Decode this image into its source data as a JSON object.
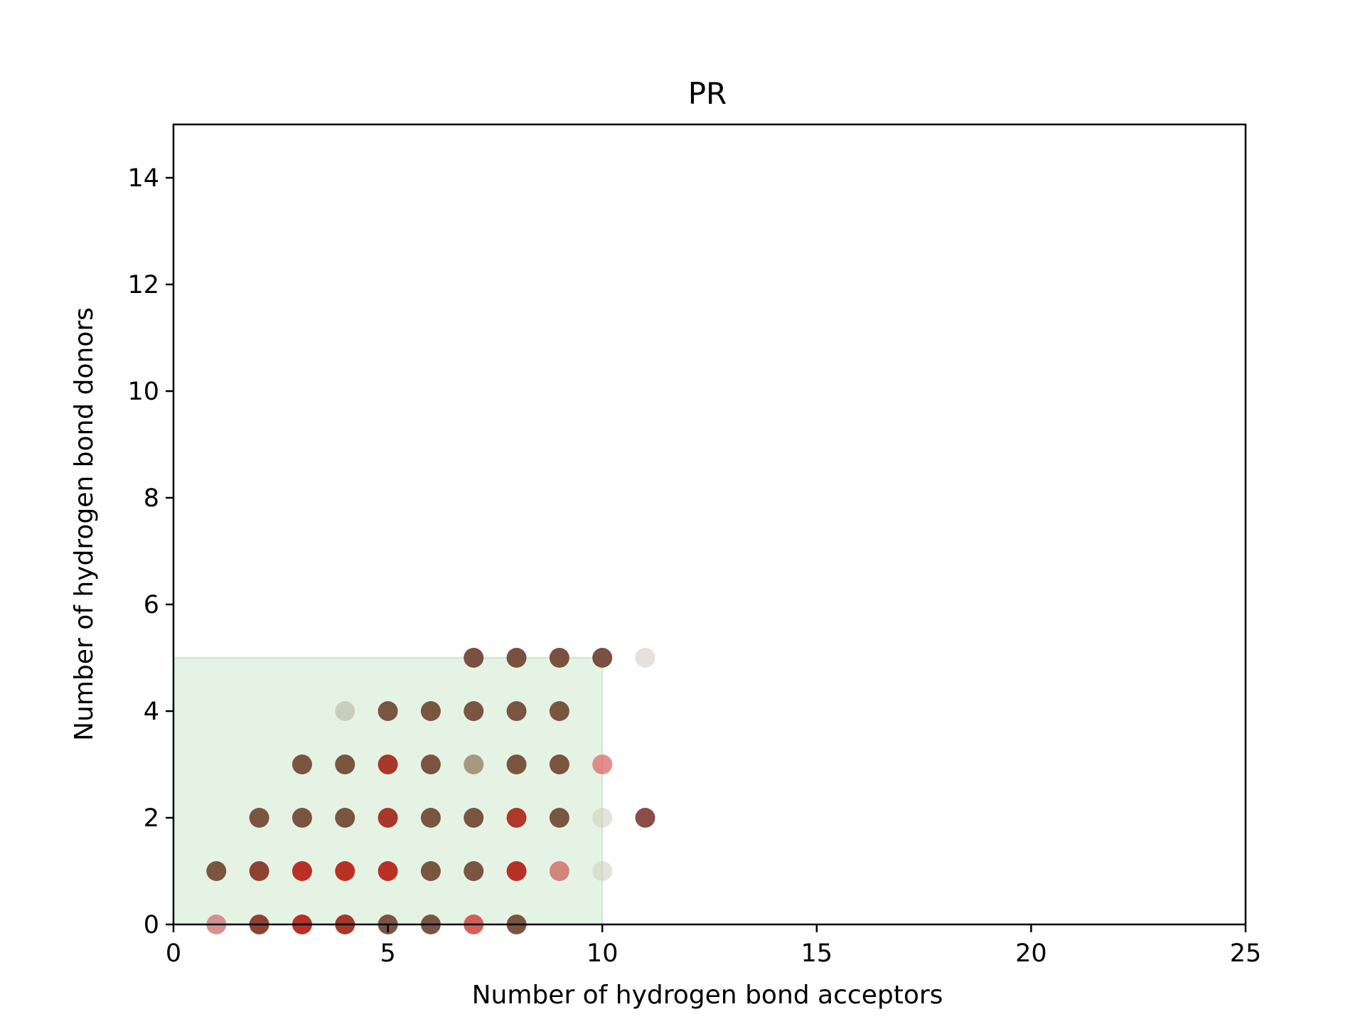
{
  "chart_data": {
    "type": "scatter",
    "title": "PR",
    "xlabel": "Number of hydrogen bond acceptors",
    "ylabel": "Number of hydrogen bond donors",
    "xlim": [
      0,
      25
    ],
    "ylim": [
      0,
      15
    ],
    "xticks": [
      0,
      5,
      10,
      15,
      20,
      25
    ],
    "yticks": [
      0,
      2,
      4,
      6,
      8,
      10,
      12,
      14
    ],
    "grid": false,
    "rule_region": {
      "x": [
        0,
        10
      ],
      "y": [
        0,
        5
      ],
      "color": "#2ca02c",
      "opacity": 0.12
    },
    "colors": {
      "brown": "#7a5240",
      "red": "#c0302a",
      "palered": "#e06a66",
      "faded": "#c8bdb5"
    },
    "points": [
      {
        "x": 7,
        "y": 5,
        "color": "#7a5040",
        "alpha": 1.0
      },
      {
        "x": 8,
        "y": 5,
        "color": "#7a5040",
        "alpha": 1.0
      },
      {
        "x": 9,
        "y": 5,
        "color": "#7a5040",
        "alpha": 1.0
      },
      {
        "x": 10,
        "y": 5,
        "color": "#7a5040",
        "alpha": 1.0
      },
      {
        "x": 11,
        "y": 5,
        "color": "#d8ccc6",
        "alpha": 0.6
      },
      {
        "x": 4,
        "y": 4,
        "color": "#b5b5a0",
        "alpha": 0.6
      },
      {
        "x": 5,
        "y": 4,
        "color": "#7a5540",
        "alpha": 1.0
      },
      {
        "x": 6,
        "y": 4,
        "color": "#7a5540",
        "alpha": 1.0
      },
      {
        "x": 7,
        "y": 4,
        "color": "#7a5540",
        "alpha": 1.0
      },
      {
        "x": 8,
        "y": 4,
        "color": "#7a5540",
        "alpha": 1.0
      },
      {
        "x": 9,
        "y": 4,
        "color": "#7a5540",
        "alpha": 1.0
      },
      {
        "x": 3,
        "y": 3,
        "color": "#7a5540",
        "alpha": 1.0
      },
      {
        "x": 4,
        "y": 3,
        "color": "#7a5540",
        "alpha": 1.0
      },
      {
        "x": 5,
        "y": 3,
        "color": "#a8392a",
        "alpha": 1.0
      },
      {
        "x": 6,
        "y": 3,
        "color": "#7a5540",
        "alpha": 1.0
      },
      {
        "x": 7,
        "y": 3,
        "color": "#9a8a70",
        "alpha": 0.85
      },
      {
        "x": 8,
        "y": 3,
        "color": "#7a5540",
        "alpha": 1.0
      },
      {
        "x": 9,
        "y": 3,
        "color": "#7a5540",
        "alpha": 1.0
      },
      {
        "x": 10,
        "y": 3,
        "color": "#e07070",
        "alpha": 0.8
      },
      {
        "x": 2,
        "y": 2,
        "color": "#7a5540",
        "alpha": 1.0
      },
      {
        "x": 3,
        "y": 2,
        "color": "#7a5540",
        "alpha": 1.0
      },
      {
        "x": 4,
        "y": 2,
        "color": "#7a5540",
        "alpha": 1.0
      },
      {
        "x": 5,
        "y": 2,
        "color": "#a8392a",
        "alpha": 1.0
      },
      {
        "x": 6,
        "y": 2,
        "color": "#7a5540",
        "alpha": 1.0
      },
      {
        "x": 7,
        "y": 2,
        "color": "#7a5540",
        "alpha": 1.0
      },
      {
        "x": 8,
        "y": 2,
        "color": "#b03828",
        "alpha": 1.0
      },
      {
        "x": 9,
        "y": 2,
        "color": "#7a5540",
        "alpha": 1.0
      },
      {
        "x": 10,
        "y": 2,
        "color": "#d0d0c0",
        "alpha": 0.6
      },
      {
        "x": 11,
        "y": 2,
        "color": "#8a4e46",
        "alpha": 1.0
      },
      {
        "x": 1,
        "y": 1,
        "color": "#7a5540",
        "alpha": 1.0
      },
      {
        "x": 2,
        "y": 1,
        "color": "#8e4232",
        "alpha": 1.0
      },
      {
        "x": 3,
        "y": 1,
        "color": "#bb3025",
        "alpha": 1.0
      },
      {
        "x": 4,
        "y": 1,
        "color": "#bb3025",
        "alpha": 1.0
      },
      {
        "x": 5,
        "y": 1,
        "color": "#bb3025",
        "alpha": 1.0
      },
      {
        "x": 6,
        "y": 1,
        "color": "#7a5540",
        "alpha": 1.0
      },
      {
        "x": 7,
        "y": 1,
        "color": "#7a5540",
        "alpha": 1.0
      },
      {
        "x": 8,
        "y": 1,
        "color": "#b83025",
        "alpha": 1.0
      },
      {
        "x": 9,
        "y": 1,
        "color": "#d07068",
        "alpha": 0.85
      },
      {
        "x": 10,
        "y": 1,
        "color": "#d0d0c0",
        "alpha": 0.6
      },
      {
        "x": 1,
        "y": 0,
        "color": "#d0807a",
        "alpha": 0.85
      },
      {
        "x": 2,
        "y": 0,
        "color": "#8e4232",
        "alpha": 1.0
      },
      {
        "x": 3,
        "y": 0,
        "color": "#bb3025",
        "alpha": 1.0
      },
      {
        "x": 4,
        "y": 0,
        "color": "#a53828",
        "alpha": 1.0
      },
      {
        "x": 5,
        "y": 0,
        "color": "#7a5540",
        "alpha": 1.0
      },
      {
        "x": 6,
        "y": 0,
        "color": "#7a5540",
        "alpha": 1.0
      },
      {
        "x": 7,
        "y": 0,
        "color": "#d05048",
        "alpha": 0.9
      },
      {
        "x": 8,
        "y": 0,
        "color": "#7a5540",
        "alpha": 1.0
      }
    ]
  }
}
